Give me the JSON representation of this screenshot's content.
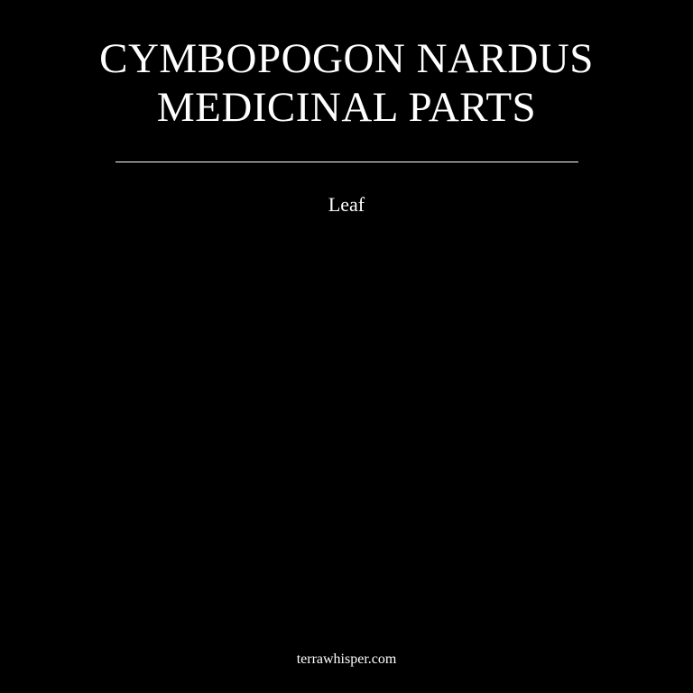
{
  "title": {
    "line1": "CYMBOPOGON NARDUS",
    "line2": "MEDICINAL PARTS"
  },
  "parts": [
    "Leaf"
  ],
  "footer": {
    "site": "terrawhisper.com"
  },
  "colors": {
    "background": "#000000",
    "text": "#ffffff"
  }
}
